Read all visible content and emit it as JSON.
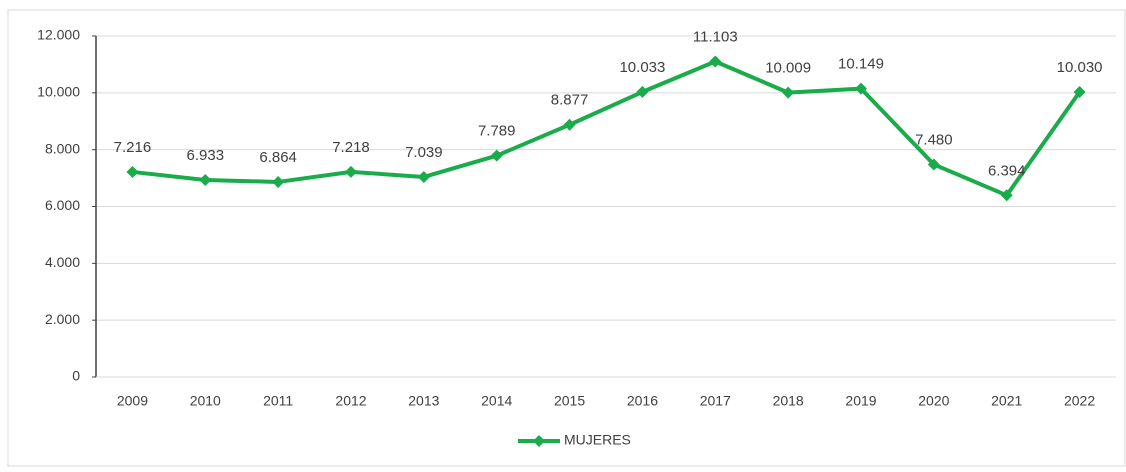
{
  "chart_data": {
    "type": "line",
    "categories": [
      "2009",
      "2010",
      "2011",
      "2012",
      "2013",
      "2014",
      "2015",
      "2016",
      "2017",
      "2018",
      "2019",
      "2020",
      "2021",
      "2022"
    ],
    "series": [
      {
        "name": "MUJERES",
        "color": "#1aab4b",
        "values": [
          7216,
          6933,
          6864,
          7218,
          7039,
          7789,
          8877,
          10033,
          11103,
          10009,
          10149,
          7480,
          6394,
          10030
        ],
        "value_labels": [
          "7.216",
          "6.933",
          "6.864",
          "7.218",
          "7.039",
          "7.789",
          "8.877",
          "10.033",
          "11.103",
          "10.009",
          "10.149",
          "7.480",
          "6.394",
          "10.030"
        ]
      }
    ],
    "ylim": [
      0,
      12000
    ],
    "yticks": [
      0,
      {
        "value": 2000,
        "label": "2.000"
      },
      {
        "value": 4000,
        "label": "4.000"
      },
      {
        "value": 6000,
        "label": "6.000"
      },
      {
        "value": 8000,
        "label": "8.000"
      },
      {
        "value": 10000,
        "label": "10.000"
      },
      {
        "value": 12000,
        "label": "12.000"
      }
    ],
    "grid": true,
    "legend": "bottom"
  }
}
